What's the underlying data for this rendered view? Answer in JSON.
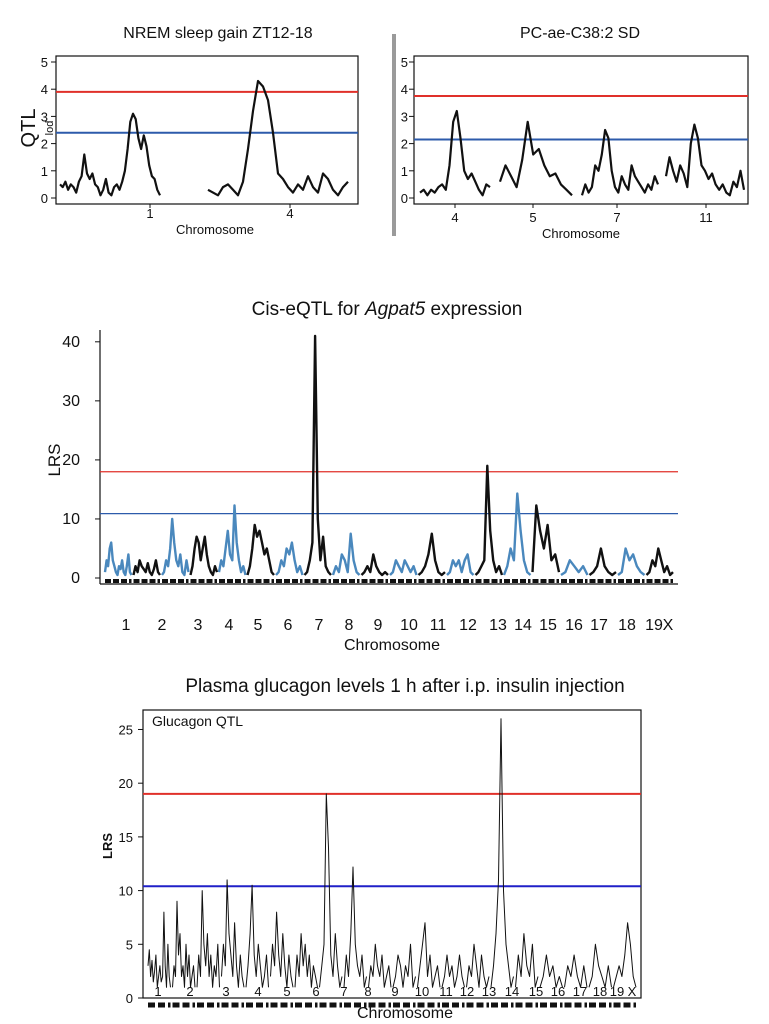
{
  "chart_data": [
    {
      "type": "line",
      "title": "NREM sleep gain ZT12-18",
      "xlabel": "Chromosome",
      "ylabel": "QTL",
      "ylabel_sub": "lod",
      "ylim": [
        0,
        5
      ],
      "yticks": [
        0,
        1,
        2,
        3,
        4,
        5
      ],
      "categories": [
        "1",
        "4"
      ],
      "thresholds": [
        {
          "value": 3.9,
          "color": "#e0302a"
        },
        {
          "value": 2.4,
          "color": "#2d5bab"
        }
      ],
      "segments": [
        {
          "chromosome": "1",
          "y": [
            0.5,
            0.4,
            0.6,
            0.3,
            0.5,
            0.4,
            0.2,
            0.6,
            0.8,
            1.6,
            0.9,
            0.7,
            0.9,
            0.5,
            0.4,
            0.1,
            0.3,
            0.7,
            0.2,
            0.1,
            0.4,
            0.5,
            0.3,
            0.6,
            1.0,
            1.8,
            2.8,
            3.1,
            2.9,
            2.2,
            1.8,
            2.3,
            1.9,
            1.2,
            0.8,
            0.7,
            0.3,
            0.1
          ]
        },
        {
          "chromosome": "4",
          "y": [
            0.3,
            0.2,
            0.1,
            0.4,
            0.5,
            0.3,
            0.1,
            0.6,
            1.8,
            3.2,
            4.3,
            4.1,
            3.6,
            2.4,
            0.9,
            0.7,
            0.4,
            0.2,
            0.5,
            0.3,
            0.8,
            0.4,
            0.2,
            0.9,
            0.7,
            0.3,
            0.1,
            0.4,
            0.6
          ]
        }
      ]
    },
    {
      "type": "line",
      "title": "PC-ae-C38:2 SD",
      "xlabel": "Chromosome",
      "ylim": [
        0,
        5
      ],
      "yticks": [
        0,
        1,
        2,
        3,
        4,
        5
      ],
      "categories": [
        "4",
        "5",
        "7",
        "11"
      ],
      "thresholds": [
        {
          "value": 3.75,
          "color": "#e0302a"
        },
        {
          "value": 2.15,
          "color": "#2d5bab"
        }
      ],
      "segments": [
        {
          "chromosome": "4",
          "y": [
            0.2,
            0.3,
            0.1,
            0.3,
            0.2,
            0.4,
            0.5,
            0.3,
            1.2,
            2.8,
            3.2,
            2.2,
            1.0,
            0.7,
            0.9,
            0.6,
            0.3,
            0.1,
            0.5,
            0.4
          ]
        },
        {
          "chromosome": "5",
          "y": [
            0.6,
            1.2,
            0.8,
            0.4,
            1.4,
            2.8,
            1.6,
            1.8,
            1.2,
            0.8,
            0.9,
            0.5,
            0.3,
            0.1
          ]
        },
        {
          "chromosome": "7",
          "y": [
            0.1,
            0.5,
            0.2,
            0.4,
            1.2,
            1.0,
            1.6,
            2.5,
            2.2,
            1.0,
            0.4,
            0.2,
            0.8,
            0.5,
            0.3,
            1.2,
            0.8,
            0.6,
            0.4,
            0.2,
            0.5,
            0.3,
            0.8,
            0.5
          ]
        },
        {
          "chromosome": "11",
          "y": [
            0.8,
            1.5,
            1.0,
            0.6,
            1.2,
            0.9,
            0.4,
            2.0,
            2.7,
            2.2,
            1.2,
            1.0,
            0.7,
            0.9,
            0.5,
            0.3,
            0.5,
            0.2,
            0.1,
            0.6,
            0.4,
            1.0,
            0.3
          ]
        }
      ]
    },
    {
      "type": "line",
      "title_prefix": "Cis-eQTL for ",
      "title_gene": "Agpat5",
      "title_suffix": " expression",
      "xlabel": "Chromosome",
      "ylabel": "LRS",
      "ylim": [
        0,
        42
      ],
      "yticks": [
        0,
        10,
        20,
        30,
        40
      ],
      "categories": [
        "1",
        "2",
        "3",
        "4",
        "5",
        "6",
        "7",
        "8",
        "9",
        "10",
        "11",
        "12",
        "13",
        "14",
        "15",
        "16",
        "17",
        "18",
        "19",
        "X"
      ],
      "series_colors": [
        "#4a88bd",
        "#111111"
      ],
      "thresholds": [
        {
          "value": 18,
          "color": "#e0302a"
        },
        {
          "value": 10.9,
          "color": "#2d5bab"
        }
      ],
      "segments": [
        {
          "chromosome": "1",
          "y": [
            1,
            3,
            2,
            5,
            6,
            3,
            2,
            1,
            0.5,
            2,
            1.5,
            3,
            1,
            0.5,
            2,
            4,
            1,
            0.5
          ]
        },
        {
          "chromosome": "2",
          "y": [
            0.5,
            2,
            1,
            3,
            2,
            1.5,
            1,
            2.5,
            1,
            0.5,
            1.5,
            3,
            1,
            0.5
          ]
        },
        {
          "chromosome": "3",
          "y": [
            0.5,
            1,
            3,
            2,
            5,
            10,
            6,
            3,
            2,
            4,
            1,
            0.5,
            3,
            1
          ]
        },
        {
          "chromosome": "4",
          "y": [
            0.5,
            2,
            5,
            7,
            6,
            3,
            5,
            7,
            4,
            2,
            1,
            0.5,
            2,
            1
          ]
        },
        {
          "chromosome": "5",
          "y": [
            1,
            3,
            2,
            5,
            8,
            4,
            3,
            12.3,
            6,
            3,
            1,
            2,
            0.5
          ]
        },
        {
          "chromosome": "6",
          "y": [
            0.5,
            2,
            5,
            9,
            7,
            8,
            6,
            4,
            5,
            3,
            1,
            0.5
          ]
        },
        {
          "chromosome": "7",
          "y": [
            0.5,
            1,
            3,
            2,
            5,
            4,
            6,
            3,
            1,
            2,
            0.5
          ]
        },
        {
          "chromosome": "8",
          "y": [
            0.5,
            1,
            3,
            6,
            41,
            10,
            3,
            7,
            2,
            1,
            0.5
          ]
        },
        {
          "chromosome": "9",
          "y": [
            0.5,
            2,
            1,
            4,
            3,
            1,
            7.5,
            3,
            1,
            0.5
          ]
        },
        {
          "chromosome": "10",
          "y": [
            0.5,
            1,
            2,
            1,
            4,
            2,
            1,
            0.5,
            1,
            0.5
          ]
        },
        {
          "chromosome": "11",
          "y": [
            0.5,
            1,
            3,
            2,
            1,
            3,
            2,
            1,
            2,
            0.5
          ]
        },
        {
          "chromosome": "12",
          "y": [
            0.5,
            1,
            2,
            4,
            7.5,
            3,
            1,
            0.5,
            1
          ]
        },
        {
          "chromosome": "13",
          "y": [
            0.5,
            1,
            3,
            2,
            3,
            1,
            3,
            4,
            1,
            0.5
          ]
        },
        {
          "chromosome": "14",
          "y": [
            0.5,
            1,
            2,
            3,
            19,
            8,
            3,
            1,
            2,
            0.5
          ]
        },
        {
          "chromosome": "15",
          "y": [
            0.5,
            2,
            5,
            3,
            14.3,
            8,
            3,
            1,
            0.5
          ]
        },
        {
          "chromosome": "16",
          "y": [
            1,
            12.3,
            8,
            5,
            9,
            3,
            4,
            1
          ]
        },
        {
          "chromosome": "17",
          "y": [
            0.5,
            1,
            3,
            2,
            1,
            2,
            0.5
          ]
        },
        {
          "chromosome": "18",
          "y": [
            0.5,
            1,
            2,
            5,
            2,
            1,
            0.5,
            1
          ]
        },
        {
          "chromosome": "19",
          "y": [
            0.5,
            1,
            5,
            3,
            4,
            2,
            1,
            0.5
          ]
        },
        {
          "chromosome": "X",
          "y": [
            0.5,
            1,
            3,
            2,
            5,
            3,
            1,
            2,
            0.5,
            1
          ]
        }
      ]
    },
    {
      "type": "line",
      "title": "Plasma glucagon levels 1 h after i.p. insulin injection",
      "inset_label": "Glucagon QTL",
      "xlabel": "Chromosome",
      "ylabel": "LRS",
      "ylim": [
        0,
        27
      ],
      "yticks": [
        0,
        5,
        10,
        15,
        20,
        25
      ],
      "categories": [
        "1",
        "2",
        "3",
        "4",
        "5",
        "6",
        "7",
        "8",
        "9",
        "10",
        "11",
        "12",
        "13",
        "14",
        "15",
        "16",
        "17",
        "18",
        "19",
        "X"
      ],
      "thresholds": [
        {
          "value": 19.0,
          "color": "#e0302a"
        },
        {
          "value": 10.4,
          "color": "#2020c8"
        }
      ],
      "segments": [
        {
          "chromosome": "1",
          "y": [
            3,
            4.5,
            2,
            3.5,
            1.5,
            2.5,
            4,
            1,
            2,
            3,
            1.5,
            2,
            8,
            3,
            1,
            5,
            2,
            1
          ]
        },
        {
          "chromosome": "2",
          "y": [
            1,
            3,
            2,
            9,
            4,
            6,
            2,
            3,
            1,
            5,
            2,
            4,
            1,
            2,
            3,
            1
          ]
        },
        {
          "chromosome": "3",
          "y": [
            1,
            4,
            2,
            10,
            5,
            3,
            6,
            2,
            4,
            1,
            3,
            2,
            5,
            1
          ]
        },
        {
          "chromosome": "4",
          "y": [
            2,
            5,
            3,
            11,
            6,
            4,
            2,
            7,
            3,
            1,
            4,
            2,
            1
          ]
        },
        {
          "chromosome": "5",
          "y": [
            1,
            3,
            6,
            10.5,
            4,
            2,
            5,
            3,
            1,
            2,
            4,
            1
          ]
        },
        {
          "chromosome": "6",
          "y": [
            2,
            5,
            3,
            8,
            4,
            2,
            6,
            3,
            1,
            4,
            2,
            1
          ]
        },
        {
          "chromosome": "7",
          "y": [
            1,
            4,
            2,
            6,
            3,
            5,
            2,
            4,
            1,
            3,
            2,
            1
          ]
        },
        {
          "chromosome": "8",
          "y": [
            1,
            3,
            5,
            19,
            14,
            4,
            2,
            6,
            3,
            1,
            2
          ]
        },
        {
          "chromosome": "9",
          "y": [
            1,
            4,
            2,
            6,
            12.2,
            5,
            3,
            2,
            4,
            1,
            2
          ]
        },
        {
          "chromosome": "10",
          "y": [
            1,
            3,
            2,
            5,
            3,
            2,
            4,
            1,
            2,
            3,
            1
          ]
        },
        {
          "chromosome": "11",
          "y": [
            1,
            2,
            4,
            3,
            1,
            3,
            2,
            5,
            1,
            2
          ]
        },
        {
          "chromosome": "12",
          "y": [
            1,
            3,
            5,
            7,
            2,
            4,
            1,
            2,
            3,
            1
          ]
        },
        {
          "chromosome": "13",
          "y": [
            1,
            2,
            4,
            2,
            3,
            1,
            2,
            4,
            2,
            1
          ]
        },
        {
          "chromosome": "14",
          "y": [
            1,
            3,
            2,
            5,
            3,
            1,
            4,
            2,
            1,
            2
          ]
        },
        {
          "chromosome": "15",
          "y": [
            1,
            3,
            6,
            11,
            26,
            10,
            5,
            3,
            1,
            2
          ]
        },
        {
          "chromosome": "16",
          "y": [
            1,
            4,
            2,
            6,
            3,
            2,
            5,
            1,
            2
          ]
        },
        {
          "chromosome": "17",
          "y": [
            1,
            2,
            4,
            2,
            3,
            1,
            2,
            1
          ]
        },
        {
          "chromosome": "18",
          "y": [
            1,
            3,
            2,
            4,
            2,
            1,
            3,
            1
          ]
        },
        {
          "chromosome": "19",
          "y": [
            1,
            2,
            5,
            3,
            2,
            1,
            3,
            1
          ]
        },
        {
          "chromosome": "X",
          "y": [
            1,
            2,
            3,
            2,
            4,
            7,
            5,
            2,
            1
          ]
        }
      ]
    }
  ]
}
